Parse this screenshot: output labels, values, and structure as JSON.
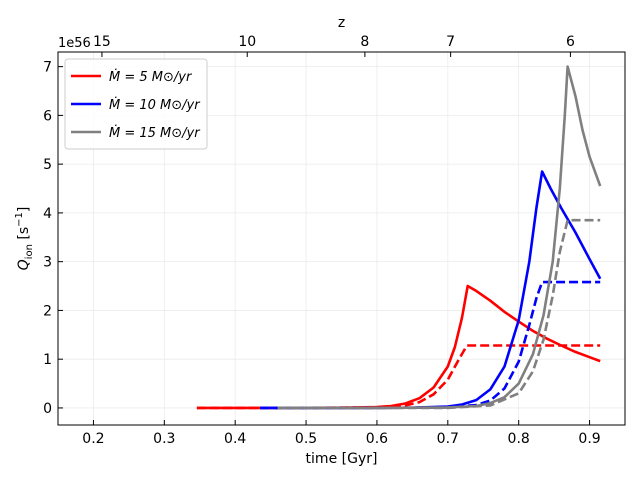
{
  "chart_data": {
    "type": "line",
    "xlabel": "time [Gyr]",
    "ylabel": "Q_ion [s^-1]",
    "ylabel_parts": {
      "main": "Q",
      "sub": "ion",
      "unit_open": " [s",
      "unit_sup": "−1",
      "unit_close": "]"
    },
    "xlim": [
      0.15,
      0.95
    ],
    "ylim": [
      -0.35,
      7.3
    ],
    "y_scale_label": "1e56",
    "x_ticks": [
      0.2,
      0.3,
      0.4,
      0.5,
      0.6,
      0.7,
      0.8,
      0.9
    ],
    "x_tick_labels": [
      "0.2",
      "0.3",
      "0.4",
      "0.5",
      "0.6",
      "0.7",
      "0.8",
      "0.9"
    ],
    "y_ticks": [
      0,
      1,
      2,
      3,
      4,
      5,
      6,
      7
    ],
    "y_tick_labels": [
      "0",
      "1",
      "2",
      "3",
      "4",
      "5",
      "6",
      "7"
    ],
    "top_axis": {
      "label": "z",
      "ticks": [
        {
          "t": 0.212,
          "label": "15"
        },
        {
          "t": 0.417,
          "label": "10"
        },
        {
          "t": 0.583,
          "label": "8"
        },
        {
          "t": 0.704,
          "label": "7"
        },
        {
          "t": 0.873,
          "label": "6"
        }
      ]
    },
    "grid": true,
    "legend_position": "top-left",
    "legend": [
      {
        "label": "Ṁ = 5 M⊙/yr",
        "color": "#ff0000"
      },
      {
        "label": "Ṁ = 10 M⊙/yr",
        "color": "#0000ff"
      },
      {
        "label": "Ṁ = 15 M⊙/yr",
        "color": "#808080"
      }
    ],
    "series": [
      {
        "color": "#ff0000",
        "style": "solid",
        "points": [
          [
            0.346,
            0
          ],
          [
            0.45,
            0
          ],
          [
            0.55,
            0.005
          ],
          [
            0.6,
            0.02
          ],
          [
            0.62,
            0.04
          ],
          [
            0.64,
            0.09
          ],
          [
            0.66,
            0.2
          ],
          [
            0.68,
            0.42
          ],
          [
            0.7,
            0.85
          ],
          [
            0.71,
            1.25
          ],
          [
            0.72,
            1.85
          ],
          [
            0.728,
            2.5
          ],
          [
            0.74,
            2.4
          ],
          [
            0.76,
            2.2
          ],
          [
            0.78,
            1.97
          ],
          [
            0.8,
            1.77
          ],
          [
            0.82,
            1.58
          ],
          [
            0.84,
            1.42
          ],
          [
            0.86,
            1.28
          ],
          [
            0.88,
            1.15
          ],
          [
            0.9,
            1.04
          ],
          [
            0.915,
            0.96
          ]
        ]
      },
      {
        "color": "#ff0000",
        "style": "dashed",
        "points": [
          [
            0.346,
            0
          ],
          [
            0.5,
            0
          ],
          [
            0.6,
            0.01
          ],
          [
            0.64,
            0.05
          ],
          [
            0.66,
            0.12
          ],
          [
            0.68,
            0.28
          ],
          [
            0.7,
            0.58
          ],
          [
            0.715,
            0.98
          ],
          [
            0.727,
            1.28
          ],
          [
            0.915,
            1.28
          ]
        ]
      },
      {
        "color": "#0000ff",
        "style": "solid",
        "points": [
          [
            0.435,
            0
          ],
          [
            0.55,
            0
          ],
          [
            0.65,
            0.005
          ],
          [
            0.7,
            0.03
          ],
          [
            0.72,
            0.07
          ],
          [
            0.74,
            0.16
          ],
          [
            0.76,
            0.38
          ],
          [
            0.78,
            0.85
          ],
          [
            0.8,
            1.8
          ],
          [
            0.815,
            3.0
          ],
          [
            0.825,
            4.1
          ],
          [
            0.833,
            4.85
          ],
          [
            0.845,
            4.5
          ],
          [
            0.86,
            4.1
          ],
          [
            0.88,
            3.6
          ],
          [
            0.9,
            3.05
          ],
          [
            0.915,
            2.65
          ]
        ]
      },
      {
        "color": "#0000ff",
        "style": "dashed",
        "points": [
          [
            0.435,
            0
          ],
          [
            0.6,
            0
          ],
          [
            0.7,
            0.01
          ],
          [
            0.74,
            0.06
          ],
          [
            0.76,
            0.15
          ],
          [
            0.78,
            0.4
          ],
          [
            0.8,
            0.95
          ],
          [
            0.815,
            1.7
          ],
          [
            0.825,
            2.25
          ],
          [
            0.833,
            2.58
          ],
          [
            0.915,
            2.58
          ]
        ]
      },
      {
        "color": "#808080",
        "style": "solid",
        "points": [
          [
            0.46,
            0
          ],
          [
            0.6,
            0
          ],
          [
            0.7,
            0.01
          ],
          [
            0.74,
            0.04
          ],
          [
            0.76,
            0.1
          ],
          [
            0.78,
            0.22
          ],
          [
            0.8,
            0.5
          ],
          [
            0.82,
            1.1
          ],
          [
            0.835,
            1.9
          ],
          [
            0.848,
            3.0
          ],
          [
            0.858,
            4.5
          ],
          [
            0.865,
            6.0
          ],
          [
            0.869,
            7.0
          ],
          [
            0.88,
            6.4
          ],
          [
            0.89,
            5.7
          ],
          [
            0.9,
            5.15
          ],
          [
            0.915,
            4.55
          ]
        ]
      },
      {
        "color": "#808080",
        "style": "dashed",
        "points": [
          [
            0.46,
            0
          ],
          [
            0.7,
            0
          ],
          [
            0.76,
            0.05
          ],
          [
            0.8,
            0.3
          ],
          [
            0.82,
            0.75
          ],
          [
            0.835,
            1.4
          ],
          [
            0.848,
            2.3
          ],
          [
            0.858,
            3.2
          ],
          [
            0.869,
            3.85
          ],
          [
            0.915,
            3.85
          ]
        ]
      }
    ]
  }
}
